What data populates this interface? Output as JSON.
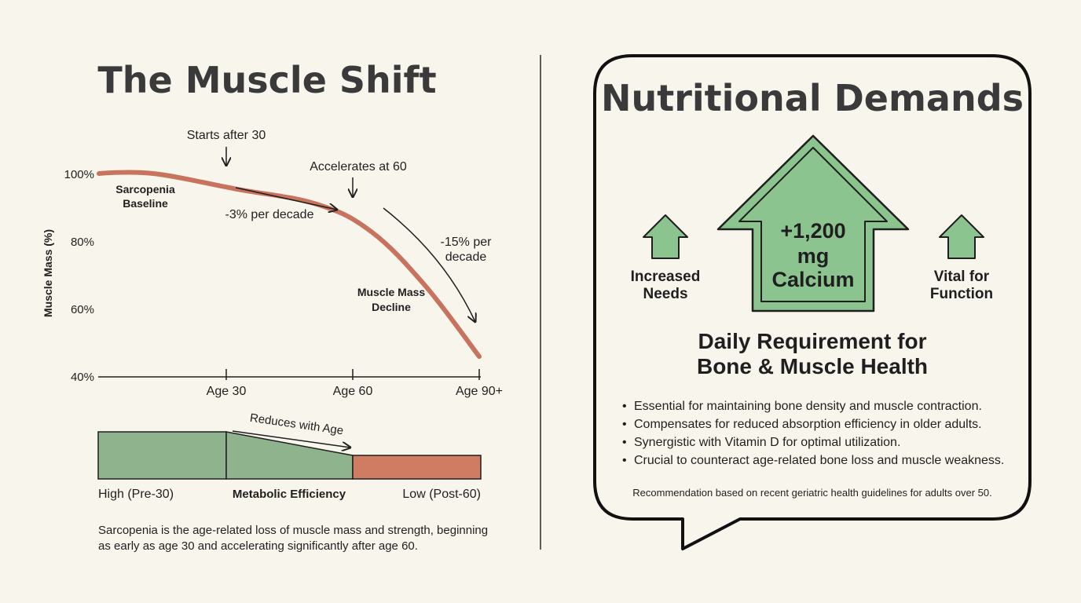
{
  "left": {
    "title": "The Muscle Shift",
    "chart_data": {
      "type": "line",
      "ylabel": "Muscle Mass (%)",
      "yticks": [
        "100%",
        "80%",
        "60%",
        "40%"
      ],
      "ylim": [
        40,
        100
      ],
      "xticks": [
        "Age 30",
        "Age 60",
        "Age 90+"
      ],
      "series": [
        {
          "x": [
            20,
            30,
            45,
            60,
            70,
            80,
            90
          ],
          "y": [
            100,
            100,
            95.5,
            91,
            83,
            67,
            46
          ]
        }
      ]
    },
    "annotations": {
      "starts": "Starts after 30",
      "accelerates": "Accelerates at 60",
      "baseline_line1": "Sarcopenia",
      "baseline_line2": "Baseline",
      "rate1": "-3% per decade",
      "rate2_line1": "-15% per",
      "rate2_line2": "decade",
      "decline_line1": "Muscle Mass",
      "decline_line2": "Decline"
    },
    "metabolic": {
      "arrow_label": "Reduces with Age",
      "high": "High (Pre-30)",
      "center": "Metabolic Efficiency",
      "low": "Low (Post-60)",
      "levels": [
        1.0,
        0.5,
        0.5
      ],
      "colors": {
        "green": "#8fb38d",
        "red": "#cf7c63"
      }
    },
    "caption_line1": "Sarcopenia is the age-related loss of muscle mass and strength, beginning",
    "caption_line2": "as early as age 30 and accelerating significantly after age 60."
  },
  "right": {
    "title": "Nutritional Demands",
    "big_arrow_line1": "+1,200",
    "big_arrow_line2": "mg",
    "big_arrow_line3": "Calcium",
    "left_label_line1": "Increased",
    "left_label_line2": "Needs",
    "right_label_line1": "Vital for",
    "right_label_line2": "Function",
    "heading_line1": "Daily Requirement for",
    "heading_line2": "Bone & Muscle Health",
    "bullets": [
      "Essential for maintaining bone density and muscle contraction.",
      "Compensates for reduced absorption efficiency in older adults.",
      "Synergistic with Vitamin D for optimal utilization.",
      "Crucial to counteract age-related bone loss and muscle weakness."
    ],
    "footnote": "Recommendation based on recent geriatric health guidelines for adults over 50.",
    "colors": {
      "arrow_green": "#8cc490",
      "curve": "#c8735d"
    }
  }
}
